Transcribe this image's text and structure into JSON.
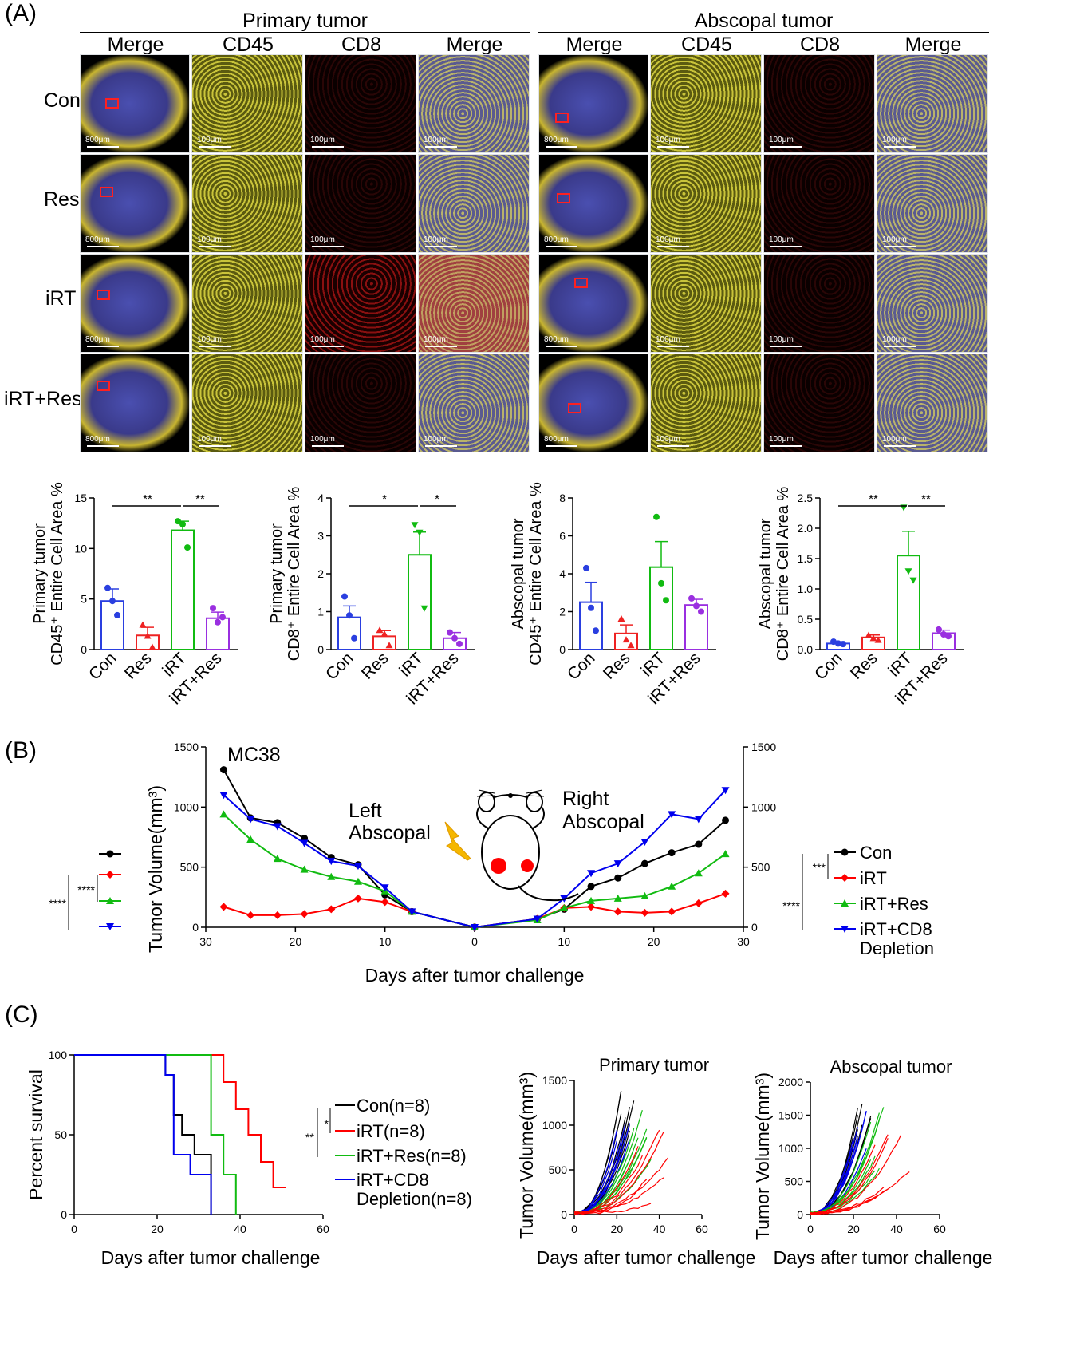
{
  "panelA": {
    "letter": "(A)",
    "primary_header": "Primary tumor",
    "abscopal_header": "Abscopal tumor",
    "columns": [
      "Merge",
      "CD45",
      "CD8",
      "Merge"
    ],
    "rows": [
      "Con",
      "Res",
      "iRT",
      "iRT+Res"
    ],
    "scale_whole": "800μm",
    "scale_zoom": "100μm"
  },
  "panelB": {
    "letter": "(B)",
    "mc38": "MC38",
    "left_label_1": "Left",
    "left_label_2": "Abscopal",
    "right_label_1": "Right",
    "right_label_2": "Abscopal",
    "sig_left": [
      "****",
      "****"
    ],
    "sig_right": [
      "****",
      "***"
    ],
    "legend": [
      "Con",
      "iRT",
      "iRT+Res",
      "iRT+CD8",
      "Depletion"
    ]
  },
  "panelC": {
    "letter": "(C)",
    "sig": [
      "**",
      "*"
    ],
    "legend": [
      "Con(n=8)",
      "iRT(n=8)",
      "iRT+Res(n=8)",
      "iRT+CD8",
      "Depletion(n=8)"
    ]
  },
  "chart_data": [
    {
      "type": "bar",
      "ylabel_1": "Primary tumor",
      "ylabel_2": "CD45⁺ Entire Cell Area %",
      "categories": [
        "Con",
        "Res",
        "iRT",
        "iRT+Res"
      ],
      "values": [
        4.8,
        1.4,
        11.8,
        3.1
      ],
      "errors": [
        1.2,
        0.8,
        0.9,
        0.6
      ],
      "points": [
        [
          6.1,
          4.8,
          3.4
        ],
        [
          2.4,
          1.3,
          0.2
        ],
        [
          12.7,
          12.4,
          10.1
        ],
        [
          4.1,
          2.7,
          3.2
        ]
      ],
      "ylim": [
        0,
        15
      ],
      "yticks": [
        "0",
        "5",
        "10",
        "15"
      ],
      "sig": [
        {
          "from": 0,
          "to": 2,
          "label": "**"
        },
        {
          "from": 2,
          "to": 3,
          "label": "**"
        }
      ]
    },
    {
      "type": "bar",
      "ylabel_1": "Primary tumor",
      "ylabel_2": "CD8⁺ Entire Cell Area %",
      "categories": [
        "Con",
        "Res",
        "iRT",
        "iRT+Res"
      ],
      "values": [
        0.85,
        0.35,
        2.5,
        0.3
      ],
      "errors": [
        0.3,
        0.15,
        0.6,
        0.15
      ],
      "points": [
        [
          1.4,
          0.9,
          0.3
        ],
        [
          0.5,
          0.4,
          0.1
        ],
        [
          3.3,
          3.1,
          1.1
        ],
        [
          0.45,
          0.3,
          0.15
        ]
      ],
      "ylim": [
        0,
        4
      ],
      "yticks": [
        "0",
        "1",
        "2",
        "3",
        "4"
      ],
      "sig": [
        {
          "from": 0,
          "to": 2,
          "label": "*"
        },
        {
          "from": 2,
          "to": 3,
          "label": "*"
        }
      ]
    },
    {
      "type": "bar",
      "ylabel_1": "Abscopal tumor",
      "ylabel_2": "CD45⁺ Entire Cell Area %",
      "categories": [
        "Con",
        "Res",
        "iRT",
        "iRT+Res"
      ],
      "values": [
        2.5,
        0.85,
        4.35,
        2.35
      ],
      "errors": [
        1.05,
        0.45,
        1.35,
        0.3
      ],
      "points": [
        [
          4.3,
          2.2,
          1.0
        ],
        [
          1.6,
          0.5,
          0.2
        ],
        [
          7.0,
          3.5,
          2.6
        ],
        [
          2.7,
          2.3,
          2.0
        ]
      ],
      "ylim": [
        0,
        8
      ],
      "yticks": [
        "0",
        "2",
        "4",
        "6",
        "8"
      ],
      "sig": []
    },
    {
      "type": "bar",
      "ylabel_1": "Abscopal tumor",
      "ylabel_2": "CD8⁺ Entire Cell Area %",
      "categories": [
        "Con",
        "Res",
        "iRT",
        "iRT+Res"
      ],
      "values": [
        0.1,
        0.2,
        1.55,
        0.27
      ],
      "errors": [
        0.03,
        0.04,
        0.4,
        0.05
      ],
      "points": [
        [
          0.13,
          0.1,
          0.09
        ],
        [
          0.23,
          0.18,
          0.15
        ],
        [
          2.35,
          1.3,
          1.15
        ],
        [
          0.33,
          0.25,
          0.22
        ]
      ],
      "ylim": [
        0,
        2.5
      ],
      "yticks": [
        "0.0",
        "0.5",
        "1.0",
        "1.5",
        "2.0",
        "2.5"
      ],
      "sig": [
        {
          "from": 0,
          "to": 2,
          "label": "**"
        },
        {
          "from": 2,
          "to": 3,
          "label": "**"
        }
      ]
    },
    {
      "type": "line",
      "ylabel": "Tumor Volume(mm³)",
      "xlabel": "Days after tumor challenge",
      "xticks": [
        "30",
        "20",
        "10",
        "0",
        "10",
        "20",
        "30"
      ],
      "yticks": [
        "0",
        "500",
        "1000",
        "1500"
      ],
      "ylim": [
        0,
        1500
      ],
      "xlim": [
        -30,
        30
      ],
      "series": [
        {
          "name": "Con",
          "color": "#000000",
          "marker": "circle",
          "left": [
            [
              28,
              1310
            ],
            [
              25,
              910
            ],
            [
              22,
              870
            ],
            [
              19,
              740
            ],
            [
              16,
              580
            ],
            [
              13,
              520
            ],
            [
              10,
              270
            ],
            [
              7,
              130
            ],
            [
              0,
              0
            ]
          ],
          "right": [
            [
              0,
              0
            ],
            [
              7,
              70
            ],
            [
              10,
              150
            ],
            [
              13,
              340
            ],
            [
              16,
              410
            ],
            [
              19,
              530
            ],
            [
              22,
              620
            ],
            [
              25,
              690
            ],
            [
              28,
              890
            ]
          ]
        },
        {
          "name": "iRT",
          "color": "#ff0000",
          "marker": "diamond",
          "left": [
            [
              28,
              170
            ],
            [
              25,
              100
            ],
            [
              22,
              100
            ],
            [
              19,
              110
            ],
            [
              16,
              150
            ],
            [
              13,
              240
            ],
            [
              10,
              210
            ],
            [
              7,
              130
            ],
            [
              0,
              0
            ]
          ],
          "right": [
            [
              0,
              0
            ],
            [
              7,
              70
            ],
            [
              10,
              160
            ],
            [
              13,
              170
            ],
            [
              16,
              130
            ],
            [
              19,
              120
            ],
            [
              22,
              130
            ],
            [
              25,
              200
            ],
            [
              28,
              280
            ]
          ]
        },
        {
          "name": "iRT+Res",
          "color": "#11bb11",
          "marker": "triangle",
          "left": [
            [
              28,
              940
            ],
            [
              25,
              730
            ],
            [
              22,
              570
            ],
            [
              19,
              480
            ],
            [
              16,
              420
            ],
            [
              13,
              380
            ],
            [
              10,
              300
            ],
            [
              7,
              130
            ],
            [
              0,
              0
            ]
          ],
          "right": [
            [
              0,
              0
            ],
            [
              7,
              60
            ],
            [
              10,
              160
            ],
            [
              13,
              220
            ],
            [
              16,
              240
            ],
            [
              19,
              260
            ],
            [
              22,
              340
            ],
            [
              25,
              450
            ],
            [
              28,
              610
            ]
          ]
        },
        {
          "name": "iRT+CD8 Depletion",
          "color": "#0000ee",
          "marker": "triangle-down",
          "left": [
            [
              28,
              1100
            ],
            [
              25,
              900
            ],
            [
              22,
              840
            ],
            [
              19,
              700
            ],
            [
              16,
              550
            ],
            [
              13,
              510
            ],
            [
              10,
              330
            ],
            [
              7,
              130
            ],
            [
              0,
              0
            ]
          ],
          "right": [
            [
              0,
              0
            ],
            [
              7,
              70
            ],
            [
              10,
              240
            ],
            [
              13,
              450
            ],
            [
              16,
              530
            ],
            [
              19,
              710
            ],
            [
              22,
              940
            ],
            [
              25,
              900
            ],
            [
              28,
              1140
            ]
          ]
        }
      ]
    },
    {
      "type": "line",
      "ylabel": "Percent survival",
      "xlabel": "Days after tumor challenge",
      "xticks": [
        "0",
        "20",
        "40",
        "60"
      ],
      "yticks": [
        "0",
        "50",
        "100"
      ],
      "xlim": [
        0,
        60
      ],
      "ylim": [
        0,
        100
      ],
      "series": [
        {
          "name": "Con(n=8)",
          "color": "#000000",
          "steps": [
            [
              0,
              100
            ],
            [
              22,
              100
            ],
            [
              22,
              87.5
            ],
            [
              24,
              87.5
            ],
            [
              24,
              62.5
            ],
            [
              26,
              62.5
            ],
            [
              26,
              50
            ],
            [
              29,
              50
            ],
            [
              29,
              37.5
            ],
            [
              33,
              37.5
            ],
            [
              33,
              0
            ]
          ]
        },
        {
          "name": "iRT(n=8)",
          "color": "#ff0000",
          "steps": [
            [
              0,
              100
            ],
            [
              36,
              100
            ],
            [
              36,
              83
            ],
            [
              39,
              83
            ],
            [
              39,
              66
            ],
            [
              42,
              66
            ],
            [
              42,
              50
            ],
            [
              45,
              50
            ],
            [
              45,
              33
            ],
            [
              48,
              33
            ],
            [
              48,
              17
            ],
            [
              51,
              17
            ]
          ]
        },
        {
          "name": "iRT+Res(n=8)",
          "color": "#11bb11",
          "steps": [
            [
              0,
              100
            ],
            [
              33,
              100
            ],
            [
              33,
              50
            ],
            [
              36,
              50
            ],
            [
              36,
              25
            ],
            [
              39,
              25
            ],
            [
              39,
              0
            ]
          ]
        },
        {
          "name": "iRT+CD8 Depletion(n=8)",
          "color": "#0000ee",
          "steps": [
            [
              0,
              100
            ],
            [
              22,
              100
            ],
            [
              22,
              87.5
            ],
            [
              24,
              87.5
            ],
            [
              24,
              37.5
            ],
            [
              28,
              37.5
            ],
            [
              28,
              25
            ],
            [
              33,
              25
            ],
            [
              33,
              0
            ]
          ]
        }
      ]
    },
    {
      "type": "line",
      "title": "Primary tumor",
      "ylabel": "Tumor Volume(mm³)",
      "xlabel": "Days after tumor challenge",
      "xticks": [
        "0",
        "20",
        "40",
        "60"
      ],
      "yticks": [
        "0",
        "500",
        "1000",
        "1500"
      ],
      "xlim": [
        0,
        60
      ],
      "ylim": [
        0,
        1500
      ]
    },
    {
      "type": "line",
      "title": "Abscopal tumor",
      "ylabel": "Tumor Volume(mm³)",
      "xlabel": "Days after tumor challenge",
      "xticks": [
        "0",
        "20",
        "40",
        "60"
      ],
      "yticks": [
        "0",
        "500",
        "1000",
        "1500",
        "2000"
      ],
      "xlim": [
        0,
        60
      ],
      "ylim": [
        0,
        2000
      ]
    }
  ],
  "colors": {
    "con": "#2a3fe0",
    "res": "#ee2222",
    "irt": "#11bb11",
    "irtres": "#9a2fe0"
  }
}
